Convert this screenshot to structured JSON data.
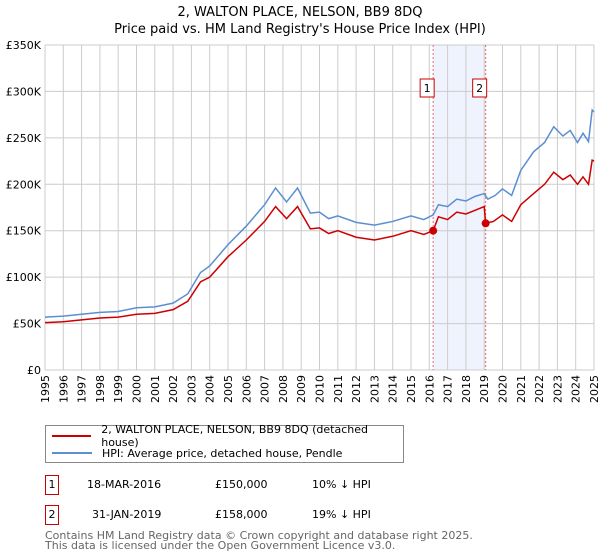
{
  "chart_data": {
    "type": "line",
    "title": "2, WALTON PLACE, NELSON, BB9 8DQ",
    "subtitle": "Price paid vs. HM Land Registry's House Price Index (HPI)",
    "xlim": [
      1995,
      2025
    ],
    "ylim": [
      0,
      350000
    ],
    "x_ticks": [
      "1995",
      "1996",
      "1997",
      "1998",
      "1999",
      "2000",
      "2001",
      "2002",
      "2003",
      "2004",
      "2005",
      "2006",
      "2007",
      "2008",
      "2009",
      "2010",
      "2011",
      "2012",
      "2013",
      "2014",
      "2015",
      "2016",
      "2017",
      "2018",
      "2019",
      "2020",
      "2021",
      "2022",
      "2023",
      "2024",
      "2025"
    ],
    "y_ticks": [
      {
        "v": 0,
        "label": "£0"
      },
      {
        "v": 50000,
        "label": "£50K"
      },
      {
        "v": 100000,
        "label": "£100K"
      },
      {
        "v": 150000,
        "label": "£150K"
      },
      {
        "v": 200000,
        "label": "£200K"
      },
      {
        "v": 250000,
        "label": "£250K"
      },
      {
        "v": 300000,
        "label": "£300K"
      },
      {
        "v": 350000,
        "label": "£350K"
      }
    ],
    "grid": true,
    "series": [
      {
        "name": "2, WALTON PLACE, NELSON, BB9 8DQ (detached house)",
        "color": "#cc0000",
        "points": [
          [
            1995,
            51000
          ],
          [
            1996,
            52000
          ],
          [
            1997,
            54000
          ],
          [
            1998,
            56000
          ],
          [
            1999,
            57000
          ],
          [
            2000,
            60000
          ],
          [
            2001,
            61000
          ],
          [
            2002,
            65000
          ],
          [
            2002.8,
            74000
          ],
          [
            2003.5,
            95000
          ],
          [
            2004,
            100000
          ],
          [
            2005,
            122000
          ],
          [
            2006,
            140000
          ],
          [
            2007,
            160000
          ],
          [
            2007.6,
            176000
          ],
          [
            2008.2,
            163000
          ],
          [
            2008.8,
            176000
          ],
          [
            2009.5,
            152000
          ],
          [
            2010,
            153000
          ],
          [
            2010.5,
            147000
          ],
          [
            2011,
            150000
          ],
          [
            2012,
            143000
          ],
          [
            2013,
            140000
          ],
          [
            2014,
            144000
          ],
          [
            2015,
            150000
          ],
          [
            2015.7,
            146000
          ],
          [
            2016.21,
            150000
          ],
          [
            2016.5,
            165000
          ],
          [
            2017,
            162000
          ],
          [
            2017.5,
            170000
          ],
          [
            2018,
            168000
          ],
          [
            2018.5,
            172000
          ],
          [
            2019.0,
            176000
          ],
          [
            2019.08,
            158000
          ],
          [
            2019.5,
            160000
          ],
          [
            2020,
            167000
          ],
          [
            2020.5,
            160000
          ],
          [
            2021,
            178000
          ],
          [
            2021.7,
            190000
          ],
          [
            2022.3,
            200000
          ],
          [
            2022.8,
            213000
          ],
          [
            2023.3,
            205000
          ],
          [
            2023.7,
            210000
          ],
          [
            2024.1,
            200000
          ],
          [
            2024.4,
            208000
          ],
          [
            2024.7,
            200000
          ],
          [
            2024.9,
            226000
          ],
          [
            2025,
            225000
          ]
        ]
      },
      {
        "name": "HPI: Average price, detached house, Pendle",
        "color": "#5b8fd1",
        "points": [
          [
            1995,
            57000
          ],
          [
            1996,
            58000
          ],
          [
            1997,
            60000
          ],
          [
            1998,
            62000
          ],
          [
            1999,
            63000
          ],
          [
            2000,
            67000
          ],
          [
            2001,
            68000
          ],
          [
            2002,
            72000
          ],
          [
            2002.8,
            82000
          ],
          [
            2003.5,
            105000
          ],
          [
            2004,
            112000
          ],
          [
            2005,
            135000
          ],
          [
            2006,
            155000
          ],
          [
            2007,
            178000
          ],
          [
            2007.6,
            196000
          ],
          [
            2008.2,
            181000
          ],
          [
            2008.8,
            196000
          ],
          [
            2009.5,
            169000
          ],
          [
            2010,
            170000
          ],
          [
            2010.5,
            163000
          ],
          [
            2011,
            166000
          ],
          [
            2012,
            159000
          ],
          [
            2013,
            156000
          ],
          [
            2014,
            160000
          ],
          [
            2015,
            166000
          ],
          [
            2015.7,
            162000
          ],
          [
            2016.21,
            167000
          ],
          [
            2016.5,
            178000
          ],
          [
            2017,
            176000
          ],
          [
            2017.5,
            184000
          ],
          [
            2018,
            182000
          ],
          [
            2018.5,
            187000
          ],
          [
            2019.0,
            190000
          ],
          [
            2019.2,
            184000
          ],
          [
            2019.6,
            188000
          ],
          [
            2020,
            195000
          ],
          [
            2020.5,
            188000
          ],
          [
            2021,
            215000
          ],
          [
            2021.7,
            235000
          ],
          [
            2022.3,
            245000
          ],
          [
            2022.8,
            262000
          ],
          [
            2023.3,
            252000
          ],
          [
            2023.7,
            258000
          ],
          [
            2024.1,
            245000
          ],
          [
            2024.4,
            255000
          ],
          [
            2024.7,
            246000
          ],
          [
            2024.9,
            280000
          ],
          [
            2025,
            278000
          ]
        ]
      }
    ],
    "sales": [
      {
        "id": "1",
        "x": 2016.21,
        "y": 150000
      },
      {
        "id": "2",
        "x": 2019.08,
        "y": 158000
      }
    ],
    "shaded_range": [
      2016.21,
      2019.08
    ],
    "legend_placement": "bottom"
  },
  "table": [
    {
      "id": "1",
      "date": "18-MAR-2016",
      "price": "£150,000",
      "delta": "10% ↓ HPI"
    },
    {
      "id": "2",
      "date": "31-JAN-2019",
      "price": "£158,000",
      "delta": "19% ↓ HPI"
    }
  ],
  "footer": [
    "Contains HM Land Registry data © Crown copyright and database right 2025.",
    "This data is licensed under the Open Government Licence v3.0."
  ]
}
